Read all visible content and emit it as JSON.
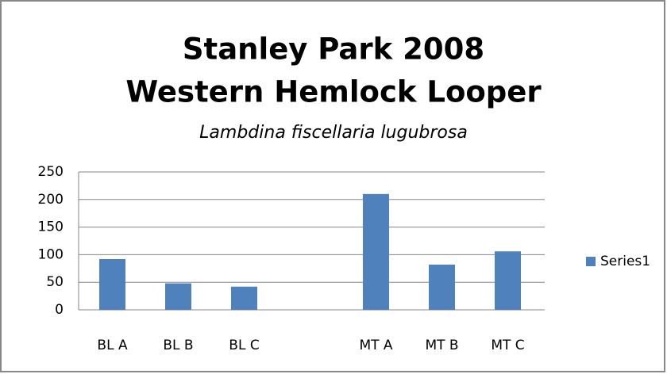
{
  "chart_data": {
    "type": "bar",
    "title": [
      "Stanley Park 2008",
      "Western Hemlock Looper"
    ],
    "subtitle": "Lambdina fiscellaria lugubrosa",
    "categories": [
      "BL A",
      "BL B",
      "BL C",
      null,
      "MT A",
      "MT B",
      "MT C"
    ],
    "series": [
      {
        "name": "Series1",
        "color": "#4f81bd",
        "values": [
          92,
          48,
          42,
          null,
          210,
          82,
          106
        ]
      }
    ],
    "ylim": [
      0,
      250
    ],
    "yticks": [
      0,
      50,
      100,
      150,
      200,
      250
    ],
    "grid": true,
    "legend": "right"
  }
}
